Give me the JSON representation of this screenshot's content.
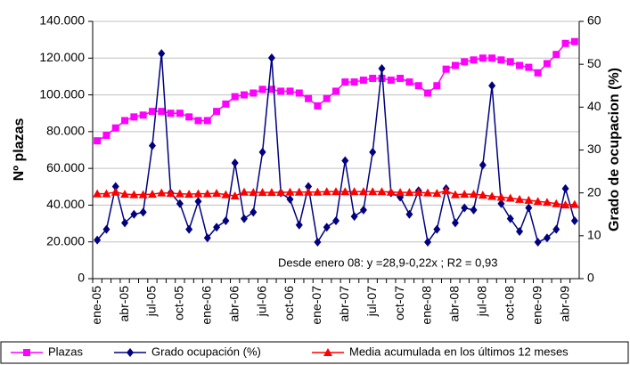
{
  "chart_data": {
    "type": "line",
    "categories": [
      "ene-05",
      null,
      null,
      "abr-05",
      null,
      null,
      "jul-05",
      null,
      null,
      "oct-05",
      null,
      null,
      "ene-06",
      null,
      null,
      "abr-06",
      null,
      null,
      "jul-06",
      null,
      null,
      "oct-06",
      null,
      null,
      "ene-07",
      null,
      null,
      "abr-07",
      null,
      null,
      "jul-07",
      null,
      null,
      "oct-07",
      null,
      null,
      "ene-08",
      null,
      null,
      "abr-08",
      null,
      null,
      "jul-08",
      null,
      null,
      "oct-08",
      null,
      null,
      "ene-09",
      null,
      null,
      "abr-09",
      null
    ],
    "series": [
      {
        "name": "Plazas",
        "color": "#ff00ff",
        "marker": "square",
        "values": [
          75000,
          78000,
          82000,
          86000,
          88000,
          89000,
          91000,
          91000,
          90000,
          90000,
          88000,
          86000,
          86000,
          91000,
          95000,
          99000,
          100000,
          101000,
          103000,
          103000,
          102000,
          102000,
          101000,
          98000,
          94000,
          98000,
          102000,
          107000,
          107000,
          108000,
          109000,
          109000,
          108000,
          109000,
          107000,
          105000,
          101000,
          105000,
          114000,
          116000,
          118000,
          119000,
          120000,
          120000,
          119000,
          118000,
          116000,
          115000,
          112000,
          117000,
          122000,
          128000,
          129000
        ]
      },
      {
        "name": "Grado ocupación (%)",
        "color": "#000080",
        "marker": "diamond",
        "axis": "y2",
        "values": [
          9,
          11.5,
          21.5,
          13,
          15,
          15.5,
          31,
          52.5,
          20,
          17.5,
          11.5,
          18,
          9.5,
          12,
          13.5,
          27,
          14,
          15.5,
          29.5,
          51.5,
          20,
          18.5,
          12.5,
          21.5,
          8.5,
          12,
          13.5,
          27.5,
          14.5,
          16,
          29.5,
          49,
          20,
          19,
          15,
          20.5,
          8.5,
          11.5,
          21,
          13,
          16.5,
          16,
          26.5,
          45,
          17.5,
          14,
          11,
          16.5,
          8.5,
          9.5,
          11.5,
          21,
          13.5
        ]
      },
      {
        "name": "Media acumulada en los últimos 12 meses",
        "color": "#ff0000",
        "marker": "triangle",
        "axis": "y2",
        "values": [
          19.8,
          19.8,
          20.2,
          19.7,
          19.6,
          19.6,
          19.7,
          20,
          19.9,
          19.8,
          19.7,
          19.8,
          19.8,
          19.9,
          19.6,
          19.3,
          20.2,
          20.1,
          20.1,
          20.1,
          20.1,
          20.2,
          20.2,
          20.2,
          20.2,
          20.3,
          20.3,
          20.3,
          20.3,
          20.3,
          20.3,
          20.3,
          20.2,
          20.1,
          20.1,
          20.1,
          20,
          19.9,
          20.5,
          19.6,
          19.7,
          19.7,
          19.5,
          19.2,
          19,
          18.8,
          18.5,
          18.3,
          18,
          17.8,
          17.5,
          17.2,
          17.3
        ]
      }
    ],
    "ylabel": "Nº plazas",
    "y2label": "Grado de ocupacion (%)",
    "ylim": [
      0,
      140000
    ],
    "yticks": [
      0,
      {
        "value": 20000,
        "label": "20.000"
      },
      {
        "value": 40000,
        "label": "40.000"
      },
      {
        "value": 60000,
        "label": "60.000"
      },
      {
        "value": 80000,
        "label": "80.000"
      },
      {
        "value": 100000,
        "label": "100.000"
      },
      {
        "value": 120000,
        "label": "120.000"
      },
      {
        "value": 140000,
        "label": "140.000"
      }
    ],
    "y2lim": [
      0,
      60
    ],
    "y2ticks": [
      0,
      10,
      20,
      30,
      40,
      50,
      60
    ],
    "annotation": "Desde enero 08: y =28,9-0,22x ; R2 = 0,93",
    "grid": true,
    "legend": "bottom"
  }
}
